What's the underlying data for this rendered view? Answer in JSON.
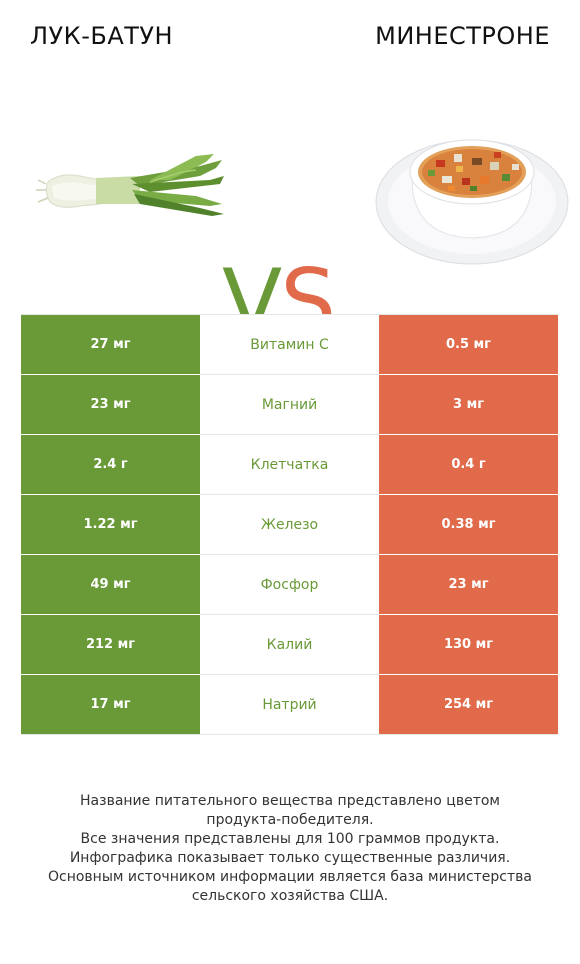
{
  "header": {
    "left_title": "ЛУК-БАТУН",
    "right_title": "МИНЕСТРОНЕ"
  },
  "vs": {
    "v": "V",
    "s": "S"
  },
  "colors": {
    "left": "#6a9a37",
    "right": "#e06a4a"
  },
  "icons": {
    "left_image": "green-onion-icon",
    "right_image": "minestrone-soup-bowl-icon"
  },
  "chart_data": {
    "type": "table",
    "columns": [
      "ЛУК-БАТУН",
      "",
      "МИНЕСТРОНЕ"
    ],
    "rows": [
      {
        "nutrient": "Витамин C",
        "left": "27 мг",
        "right": "0.5 мг"
      },
      {
        "nutrient": "Магний",
        "left": "23 мг",
        "right": "3 мг"
      },
      {
        "nutrient": "Клетчатка",
        "left": "2.4 г",
        "right": "0.4 г"
      },
      {
        "nutrient": "Железо",
        "left": "1.22 мг",
        "right": "0.38 мг"
      },
      {
        "nutrient": "Фосфор",
        "left": "49 мг",
        "right": "23 мг"
      },
      {
        "nutrient": "Калий",
        "left": "212 мг",
        "right": "130 мг"
      },
      {
        "nutrient": "Натрий",
        "left": "17 мг",
        "right": "254 мг"
      }
    ]
  },
  "footnote": {
    "lines": [
      "Название питательного вещества представлено цветом",
      "продукта-победителя.",
      "Все значения представлены для 100 граммов продукта.",
      "Инфографика показывает только существенные различия.",
      "Основным источником информации является база министерства",
      "сельского хозяйства США."
    ]
  }
}
